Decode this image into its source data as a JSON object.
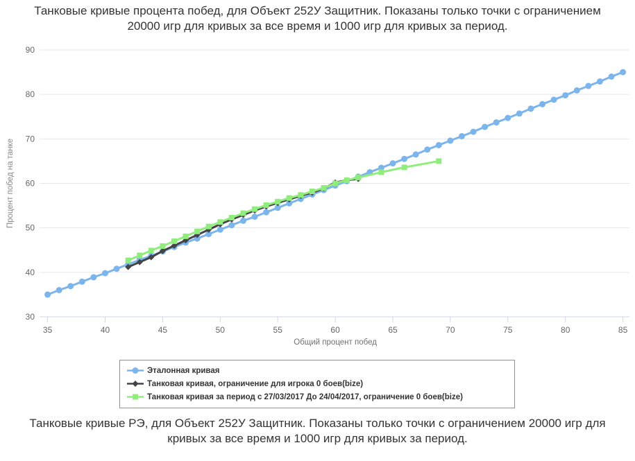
{
  "titles": {
    "top": "Танковые кривые процента побед, для Объект 252У Защитник. Показаны только точки с ограничением 20000 игр для кривых за все время и 1000 игр для кривых за период.",
    "bottom": "Танковые кривые РЭ, для Объект 252У Защитник. Показаны только точки с ограничением 20000 игр для кривых за все время и 1000 игр для кривых за период."
  },
  "colors": {
    "grid": "#e6e6e6",
    "axis_line": "#ccd6eb",
    "tick_label": "#666666",
    "axis_title": "#707070",
    "y_axis_title": "#888888",
    "title_text": "#333333",
    "legend_text": "#333333",
    "legend_border": "#909090",
    "series_blue": "#7cb5ec",
    "series_black": "#434348",
    "series_green": "#90ed7d"
  },
  "chart_data": {
    "type": "line",
    "title": "",
    "xlabel": "Общий процент побед",
    "ylabel": "Процент побед на танке",
    "xlim": [
      35,
      85
    ],
    "ylim": [
      30,
      90
    ],
    "x_ticks": [
      35,
      40,
      45,
      50,
      55,
      60,
      65,
      70,
      75,
      80,
      85
    ],
    "y_ticks": [
      30,
      40,
      50,
      60,
      70,
      80,
      90
    ],
    "grid": true,
    "legend_position": "bottom",
    "series": [
      {
        "name": "Эталонная кривая",
        "color": "#7cb5ec",
        "marker": "circle",
        "x": [
          35,
          36,
          37,
          38,
          39,
          40,
          41,
          42,
          43,
          44,
          45,
          46,
          47,
          48,
          49,
          50,
          51,
          52,
          53,
          54,
          55,
          56,
          57,
          58,
          59,
          60,
          61,
          62,
          63,
          64,
          65,
          66,
          67,
          68,
          69,
          70,
          71,
          72,
          73,
          74,
          75,
          76,
          77,
          78,
          79,
          80,
          81,
          82,
          83,
          84,
          85
        ],
        "y": [
          35.0,
          36.0,
          36.9,
          37.9,
          38.9,
          39.8,
          40.8,
          41.8,
          42.8,
          43.7,
          44.7,
          45.7,
          46.7,
          47.6,
          48.6,
          49.6,
          50.6,
          51.6,
          52.5,
          53.5,
          54.5,
          55.5,
          56.5,
          57.5,
          58.5,
          59.5,
          60.5,
          61.5,
          62.5,
          63.5,
          64.5,
          65.5,
          66.5,
          67.6,
          68.6,
          69.6,
          70.6,
          71.6,
          72.7,
          73.7,
          74.7,
          75.7,
          76.8,
          77.8,
          78.8,
          79.8,
          80.9,
          81.9,
          82.9,
          84.0,
          85.0
        ]
      },
      {
        "name": "Танковая кривая, ограничение для игрока 0 боев(bize)",
        "color": "#434348",
        "marker": "diamond",
        "x": [
          42,
          43,
          44,
          45,
          46,
          47,
          48,
          49,
          50,
          51,
          52,
          53,
          54,
          55,
          56,
          57,
          58,
          59,
          60,
          61,
          62
        ],
        "y": [
          41.2,
          42.3,
          43.4,
          44.8,
          46.0,
          47.2,
          48.4,
          49.6,
          50.8,
          51.9,
          52.9,
          53.9,
          54.8,
          55.6,
          56.4,
          57.2,
          57.9,
          58.9,
          60.2,
          60.7,
          61.0
        ]
      },
      {
        "name": "Танковая кривая за период с 27/03/2017 До 24/04/2017, ограничение 0 боев(bize)",
        "color": "#90ed7d",
        "marker": "square",
        "x": [
          42,
          43,
          44,
          45,
          46,
          47,
          48,
          49,
          50,
          51,
          52,
          53,
          54,
          55,
          56,
          57,
          58,
          59,
          60,
          61,
          62,
          64,
          66,
          69
        ],
        "y": [
          42.7,
          43.8,
          44.9,
          45.9,
          47.0,
          48.1,
          49.2,
          50.3,
          51.3,
          52.3,
          53.3,
          54.2,
          55.1,
          55.9,
          56.7,
          57.4,
          58.2,
          59.0,
          60.0,
          60.7,
          61.3,
          62.5,
          63.6,
          65.0
        ]
      }
    ]
  }
}
